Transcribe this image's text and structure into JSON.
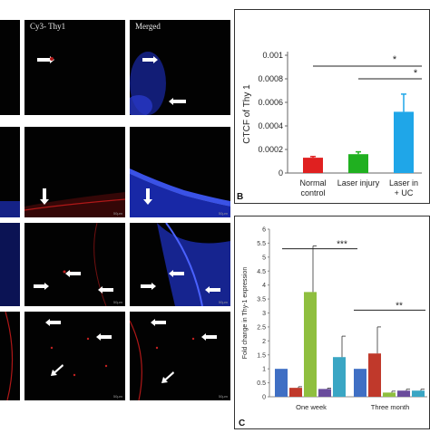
{
  "column_headers": [
    "Cy3- Thy1",
    "Merged"
  ],
  "scale_label": "50μm",
  "colors": {
    "red": "#e02020",
    "green": "#20b020",
    "light_blue": "#1fa6e8",
    "bar_blue": "#3f6fc4",
    "bar_red": "#c0392b",
    "bar_green": "#8fbf3f",
    "bar_purple": "#6a4c9c",
    "bar_teal": "#3aa6c4"
  },
  "chart_data": [
    {
      "panel_letter": "B",
      "type": "bar",
      "ylabel": "CTCF of Thy 1",
      "ylim": [
        0,
        0.001
      ],
      "yticks": [
        "0",
        "0.0002",
        "0.0004",
        "0.0006",
        "0.0008",
        "0.001"
      ],
      "categories": [
        [
          "Normal",
          "control"
        ],
        [
          "Laser injury"
        ],
        [
          "Laser in",
          "+ UC"
        ]
      ],
      "values": [
        0.00013,
        0.00016,
        0.00052
      ],
      "errors": [
        1e-05,
        2e-05,
        0.00015
      ],
      "bar_colors": [
        "#e02020",
        "#20b020",
        "#1fa6e8"
      ],
      "annotations": [
        "*",
        "*"
      ]
    },
    {
      "panel_letter": "C",
      "type": "bar",
      "ylabel": "Fold change in Thy-1 expression",
      "ylim": [
        0,
        6
      ],
      "yticks": [
        "0",
        "0.5",
        "1",
        "1.5",
        "2",
        "2.5",
        "3",
        "3.5",
        "4",
        "4.5",
        "5",
        "5.5",
        "6"
      ],
      "categories": [
        "One week",
        "Three month"
      ],
      "series": [
        {
          "values": [
            1.0,
            1.0
          ],
          "errors": [
            0,
            0
          ],
          "color": "#3f6fc4"
        },
        {
          "values": [
            0.32,
            1.55
          ],
          "errors": [
            0.04,
            0.95
          ],
          "color": "#c0392b"
        },
        {
          "values": [
            3.75,
            0.15
          ],
          "errors": [
            1.65,
            0.05
          ],
          "color": "#8fbf3f"
        },
        {
          "values": [
            0.28,
            0.22
          ],
          "errors": [
            0.03,
            0.05
          ],
          "color": "#6a4c9c"
        },
        {
          "values": [
            1.42,
            0.22
          ],
          "errors": [
            0.75,
            0.05
          ],
          "color": "#3aa6c4"
        }
      ],
      "annotations": [
        "***",
        "**"
      ]
    }
  ]
}
